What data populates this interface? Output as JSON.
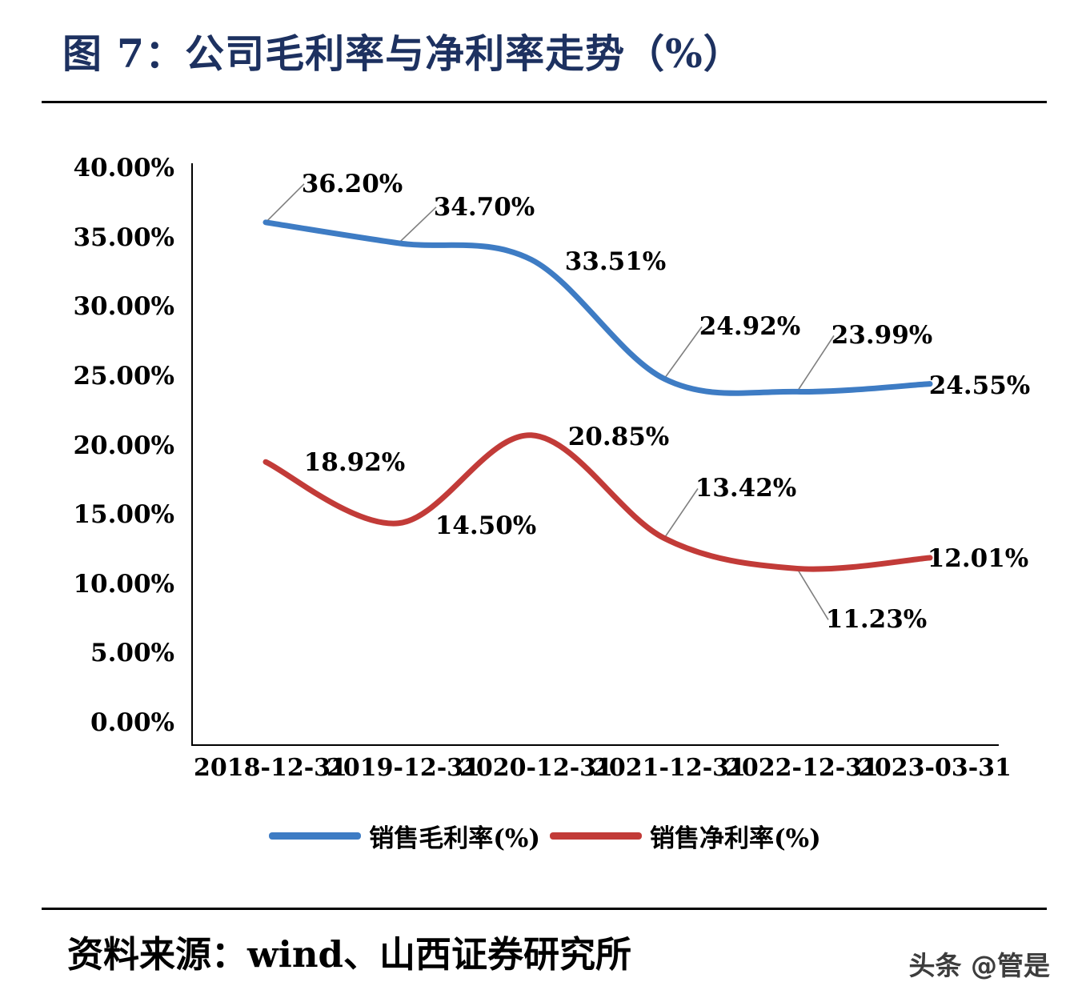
{
  "title": "图 7：公司毛利率与净利率走势（%）",
  "source": "资料来源：wind、山西证券研究所",
  "watermark": "头条 @管是",
  "colors": {
    "title": "#1d3160",
    "axis": "#000000",
    "leader": "#7f7f7f",
    "gross_margin": "#3e7cc4",
    "net_margin": "#c23b38"
  },
  "chart_data": {
    "type": "line",
    "title": "图 7：公司毛利率与净利率走势（%）",
    "x": [
      "2018-12-31",
      "2019-12-31",
      "2020-12-31",
      "2021-12-31",
      "2022-12-31",
      "2023-03-31"
    ],
    "series": [
      {
        "name": "销售毛利率(%)",
        "color": "#3e7cc4",
        "values": [
          36.2,
          34.7,
          33.51,
          24.92,
          23.99,
          24.55
        ],
        "labels": [
          "36.20%",
          "34.70%",
          "33.51%",
          "24.92%",
          "23.99%",
          "24.55%"
        ]
      },
      {
        "name": "销售净利率(%)",
        "color": "#c23b38",
        "values": [
          18.92,
          14.5,
          20.85,
          13.42,
          11.23,
          12.01
        ],
        "labels": [
          "18.92%",
          "14.50%",
          "20.85%",
          "13.42%",
          "11.23%",
          "12.01%"
        ]
      }
    ],
    "ylim": [
      0,
      40
    ],
    "ytick_step": 5,
    "ytick_labels": [
      "0.00%",
      "5.00%",
      "10.00%",
      "15.00%",
      "20.00%",
      "25.00%",
      "30.00%",
      "35.00%",
      "40.00%"
    ],
    "grid": false,
    "legend_position": "bottom",
    "smooth": true
  }
}
